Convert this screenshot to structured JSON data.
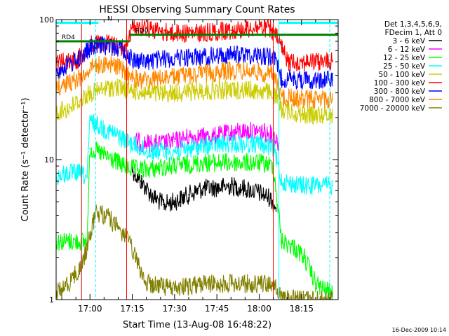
{
  "chart_data": {
    "type": "line",
    "title": "HESSI Observing Summary Count Rates",
    "xlabel": "Start Time (13-Aug-08 16:48:22)",
    "ylabel": "Count Rate (s⁻¹ detector⁻¹)",
    "x_unit": "minutes",
    "xlim": [
      "16:48",
      "18:28"
    ],
    "ylim": [
      1,
      100
    ],
    "y_scale": "log",
    "x_ticks": [
      "17:00",
      "17:15",
      "17:30",
      "17:45",
      "18:00",
      "18:15"
    ],
    "y_ticks": [
      "1",
      "10",
      "100"
    ],
    "legend_header": [
      "Det 1,3,4,5,6,9,",
      "FDecim 1, Att 0"
    ],
    "legend_position": "right",
    "timestamp": "16-Dec-2009 10:14",
    "series": [
      {
        "name": "3 - 6 keV",
        "color": "#000000",
        "x": [
          "17:15",
          "17:18",
          "17:22",
          "17:26",
          "17:30",
          "17:35",
          "17:40",
          "17:45",
          "17:50",
          "17:55",
          "18:00",
          "18:04",
          "18:06"
        ],
        "y": [
          8.5,
          7.0,
          5.5,
          4.8,
          5.0,
          5.6,
          6.2,
          6.3,
          6.5,
          6.2,
          5.8,
          5.3,
          4.5
        ]
      },
      {
        "name": "6 - 12 keV",
        "color": "#ff00ff",
        "x": [
          "17:16",
          "17:20",
          "17:25",
          "17:30",
          "17:35",
          "17:40",
          "17:45",
          "17:50",
          "17:55",
          "18:00",
          "18:05",
          "18:07"
        ],
        "y": [
          13.5,
          13.0,
          13.0,
          13.5,
          14.5,
          14.5,
          14.8,
          15.5,
          16.0,
          16.0,
          15.0,
          13.0
        ]
      },
      {
        "name": "12 - 25 keV",
        "color": "#00ff00",
        "x": [
          "16:48",
          "16:52",
          "16:56",
          "16:59",
          "17:00",
          "17:04",
          "17:08",
          "17:12",
          "17:16",
          "17:20",
          "17:30",
          "17:40",
          "17:50",
          "18:00",
          "18:05",
          "18:08",
          "18:12",
          "18:16",
          "18:20",
          "18:24",
          "18:26"
        ],
        "y": [
          2.6,
          2.6,
          2.6,
          2.6,
          12.0,
          11.0,
          10.0,
          9.0,
          8.5,
          8.5,
          9.0,
          9.5,
          9.5,
          9.5,
          9.0,
          2.6,
          2.4,
          2.0,
          1.3,
          1.15,
          1.1
        ]
      },
      {
        "name": "25 - 50 keV",
        "color": "#00ffff",
        "x": [
          "16:48",
          "16:52",
          "16:56",
          "16:59",
          "17:00",
          "17:04",
          "17:08",
          "17:12",
          "17:16",
          "17:20",
          "17:30",
          "17:40",
          "17:50",
          "18:00",
          "18:05",
          "18:08",
          "18:15",
          "18:20",
          "18:26"
        ],
        "y": [
          7.5,
          8.0,
          8.0,
          7.5,
          19.0,
          17.0,
          15.5,
          14.0,
          12.5,
          11.5,
          11.5,
          12.5,
          13.0,
          13.0,
          12.0,
          7.0,
          6.5,
          6.5,
          6.5
        ]
      },
      {
        "name": "50 - 100 keV",
        "color": "#cccc00",
        "x": [
          "16:48",
          "16:52",
          "16:56",
          "16:59",
          "17:03",
          "17:08",
          "17:12",
          "17:15",
          "17:20",
          "17:25",
          "17:30",
          "17:35",
          "17:40",
          "17:45",
          "17:50",
          "17:55",
          "18:00",
          "18:05",
          "18:08",
          "18:15",
          "18:20",
          "18:26"
        ],
        "y": [
          22.0,
          23.0,
          26.0,
          29.0,
          31.0,
          33.0,
          32.0,
          31.0,
          30.0,
          29.5,
          30.0,
          30.5,
          31.0,
          31.0,
          31.5,
          31.5,
          31.0,
          30.0,
          23.0,
          21.0,
          21.0,
          21.0
        ]
      },
      {
        "name": "100 - 300 keV",
        "color": "#ff0000",
        "x": [
          "16:48",
          "16:56",
          "16:58",
          "17:00",
          "17:03",
          "17:06",
          "17:09",
          "17:12",
          "17:14",
          "17:16",
          "17:20",
          "17:25",
          "17:30",
          "17:35",
          "17:40",
          "17:45",
          "17:50",
          "17:55",
          "18:00",
          "18:04",
          "18:07",
          "18:10",
          "18:20",
          "18:26"
        ],
        "y": [
          50.0,
          52.0,
          60.0,
          66.0,
          68.0,
          68.0,
          66.0,
          62.0,
          78.0,
          90.0,
          88.0,
          82.0,
          80.0,
          80.0,
          80.0,
          82.0,
          84.0,
          86.0,
          88.0,
          86.0,
          70.0,
          50.0,
          50.0,
          50.0
        ]
      },
      {
        "name": "300 - 800 keV",
        "color": "#0000ff",
        "x": [
          "16:48",
          "16:52",
          "16:56",
          "16:59",
          "17:02",
          "17:06",
          "17:09",
          "17:12",
          "17:15",
          "17:20",
          "17:25",
          "17:30",
          "17:35",
          "17:40",
          "17:45",
          "17:50",
          "17:55",
          "18:00",
          "18:05",
          "18:08",
          "18:15",
          "18:20",
          "18:26"
        ],
        "y": [
          43.0,
          47.0,
          52.0,
          60.0,
          65.0,
          65.0,
          64.0,
          60.0,
          52.0,
          50.0,
          52.0,
          53.0,
          54.0,
          54.0,
          55.0,
          56.0,
          56.0,
          56.0,
          54.0,
          38.0,
          37.0,
          37.0,
          37.0
        ]
      },
      {
        "name": "800 - 7000 keV",
        "color": "#ff8800",
        "x": [
          "16:48",
          "16:52",
          "16:56",
          "16:59",
          "17:02",
          "17:06",
          "17:09",
          "17:12",
          "17:15",
          "17:20",
          "17:25",
          "17:30",
          "17:35",
          "17:40",
          "17:45",
          "17:50",
          "17:55",
          "18:00",
          "18:05",
          "18:08",
          "18:15",
          "18:20",
          "18:26"
        ],
        "y": [
          33.0,
          35.0,
          38.0,
          43.0,
          47.0,
          49.0,
          47.0,
          43.0,
          38.0,
          37.0,
          38.0,
          39.0,
          40.0,
          41.0,
          42.0,
          43.0,
          43.0,
          42.0,
          40.0,
          28.0,
          27.0,
          27.0,
          27.0
        ]
      },
      {
        "name": "7000 - 20000 keV",
        "color": "#808000",
        "x": [
          "16:48",
          "16:52",
          "16:56",
          "16:59",
          "17:02",
          "17:06",
          "17:10",
          "17:13",
          "17:16",
          "17:20",
          "17:30",
          "17:40",
          "17:50",
          "18:00",
          "18:05",
          "18:08",
          "18:15",
          "18:20",
          "18:26"
        ],
        "y": [
          1.1,
          1.3,
          1.6,
          2.3,
          4.2,
          4.0,
          3.2,
          2.8,
          2.0,
          1.3,
          1.2,
          1.3,
          1.3,
          1.3,
          1.3,
          1.0,
          1.0,
          1.0,
          1.0
        ]
      }
    ],
    "flags": [
      {
        "label": "N",
        "color": "#00ffff",
        "level": 95,
        "from": "16:48",
        "to": "17:03"
      },
      {
        "label": "",
        "color": "#00ffff",
        "level": 95,
        "from": "18:07",
        "to": "18:28"
      },
      {
        "label": "RD0",
        "color": "#008000",
        "level": 78,
        "from": "17:14",
        "to": "18:28"
      },
      {
        "label": "RD4",
        "color": "#008000",
        "level": 70,
        "from": "16:48",
        "to": "17:14"
      }
    ],
    "markers": [
      {
        "time": "16:57",
        "color": "#00ffff",
        "style": "solid"
      },
      {
        "time": "17:02",
        "color": "#00ffff",
        "style": "dashed"
      },
      {
        "time": "17:13",
        "color": "#00ffff",
        "style": "dashed"
      },
      {
        "time": "18:07",
        "color": "#00ffff",
        "style": "solid"
      },
      {
        "time": "18:25",
        "color": "#00ffff",
        "style": "dashed"
      },
      {
        "time": "16:57",
        "color": "#ff0000",
        "style": "solid"
      },
      {
        "time": "17:13",
        "color": "#ff0000",
        "style": "solid"
      },
      {
        "time": "18:05",
        "color": "#ff0000",
        "style": "solid"
      }
    ]
  }
}
